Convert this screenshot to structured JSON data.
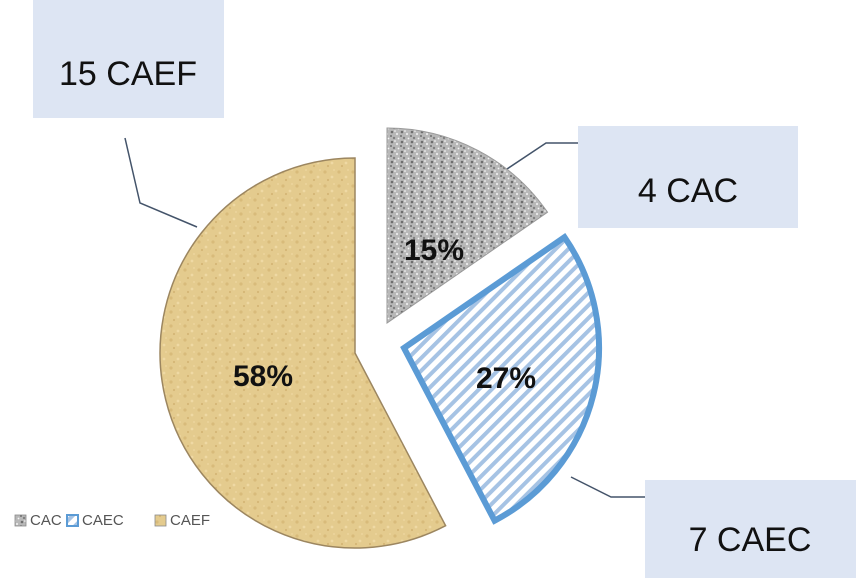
{
  "chart_data": {
    "type": "pie",
    "exploded": true,
    "legend_position": "bottom-left",
    "slices": [
      {
        "name": "CAC",
        "count": 4,
        "percent": 15,
        "callout": "4 CAC",
        "color": "#a9a9a9",
        "pattern": "speckled-gray"
      },
      {
        "name": "CAEC",
        "count": 7,
        "percent": 27,
        "callout": "7 CAEC",
        "color": "#5b9bd5",
        "pattern": "diagonal-blue-stripes"
      },
      {
        "name": "CAEF",
        "count": 15,
        "percent": 58,
        "callout": "15 CAEF",
        "color": "#e3c98a",
        "pattern": "tan-parchment"
      }
    ],
    "legend": [
      "CAC",
      "CAEC",
      "CAEF"
    ],
    "callout_box_color": "#dde5f3"
  }
}
